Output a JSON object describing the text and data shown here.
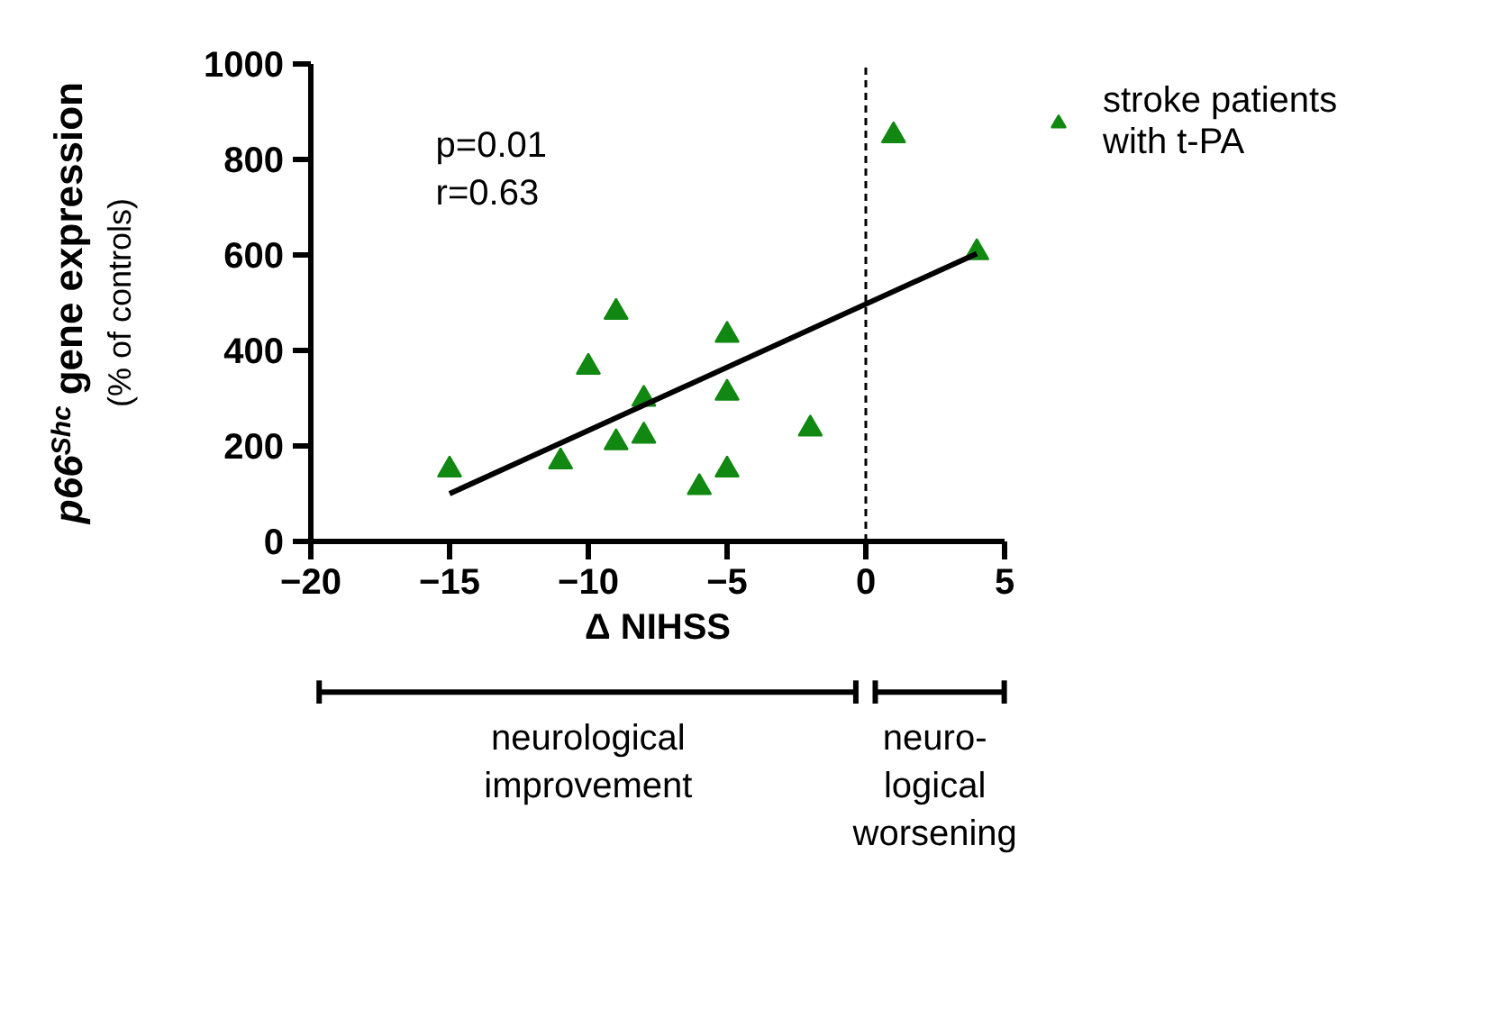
{
  "chart_data": {
    "type": "scatter",
    "xlabel": "Δ NIHSS",
    "ylabel": "p66$^{Shc}$ gene expression\n(% of controls)",
    "xlim": [
      -20,
      5
    ],
    "xticks": [
      -20,
      -15,
      -10,
      -5,
      0,
      5
    ],
    "ylim": [
      0,
      1000
    ],
    "yticks": [
      0,
      200,
      400,
      600,
      800,
      1000
    ],
    "grid": false,
    "legend": "top right",
    "marker": "triangle",
    "series": [
      {
        "name": "stroke patients with t-PA",
        "color": "#118811",
        "x": [
          -15,
          -11,
          -10,
          -9,
          -9,
          -8,
          -8,
          -6,
          -5,
          -5,
          -5,
          -2,
          1,
          4
        ],
        "values": [
          150,
          167,
          365,
          480,
          207,
          298,
          221,
          113,
          432,
          311,
          150,
          236,
          850,
          605
        ]
      },
      {
        "type": "line",
        "color": "#000000",
        "marker": "none",
        "x": [
          -15,
          4
        ],
        "values": [
          100,
          603
        ]
      }
    ],
    "ref_lines": [
      {
        "axis": "x",
        "value": 0,
        "line_style": "dashed",
        "color": "#000000"
      }
    ],
    "annotations": [
      "p=0.01\nr=0.63",
      "neurological\nimprovement",
      "neuro-\nlogical\nworsening"
    ]
  }
}
